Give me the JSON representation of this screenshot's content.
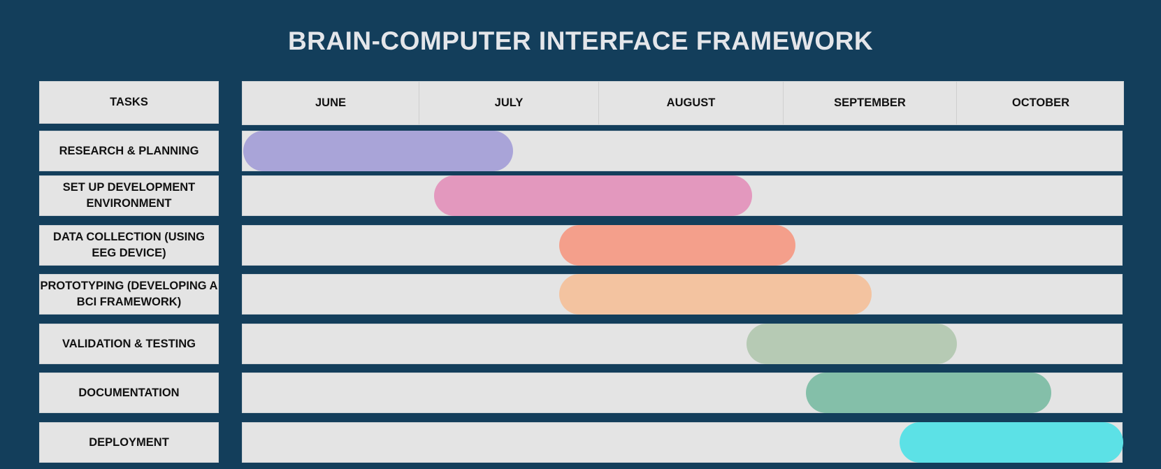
{
  "title": "BRAIN-COMPUTER INTERFACE FRAMEWORK",
  "tasks_header": "TASKS",
  "months": [
    "JUNE",
    "JULY",
    "AUGUST",
    "SEPTEMBER",
    "OCTOBER"
  ],
  "tasks": [
    {
      "label": "RESEARCH & PLANNING",
      "start": 0.0,
      "end": 1.52,
      "color": "#a9a4d8"
    },
    {
      "label": "SET UP DEVELOPMENT ENVIRONMENT",
      "start": 1.08,
      "end": 2.83,
      "color": "#e398be"
    },
    {
      "label": "DATA COLLECTION (USING EEG DEVICE)",
      "start": 1.78,
      "end": 3.07,
      "color": "#f49f8b"
    },
    {
      "label": "PROTOTYPING (DEVELOPING A BCI FRAMEWORK)",
      "start": 1.78,
      "end": 3.51,
      "color": "#f3c3a0"
    },
    {
      "label": "VALIDATION & TESTING",
      "start": 2.8,
      "end": 4.0,
      "color": "#b6cab4"
    },
    {
      "label": "DOCUMENTATION",
      "start": 3.13,
      "end": 4.56,
      "color": "#84bfa9"
    },
    {
      "label": "DEPLOYMENT",
      "start": 3.67,
      "end": 5.0,
      "color": "#5ce1e6"
    }
  ]
}
